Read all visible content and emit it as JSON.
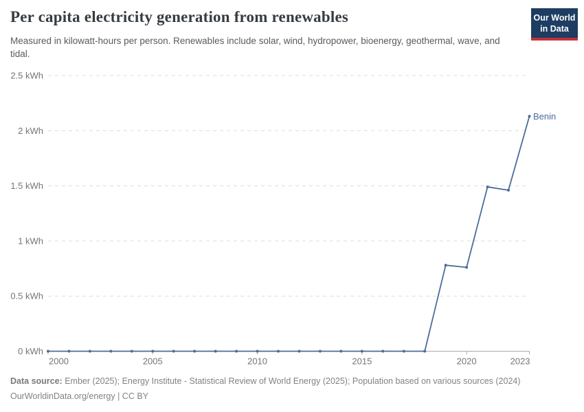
{
  "header": {
    "title": "Per capita electricity generation from renewables",
    "subtitle": "Measured in kilowatt-hours per person. Renewables include solar, wind, hydropower, bioenergy, geothermal, wave, and tidal.",
    "logo": {
      "line1": "Our World",
      "line2": "in Data",
      "bg_color": "#1d3d63",
      "accent_color": "#c4313b"
    }
  },
  "chart_data": {
    "type": "line",
    "title": "Per capita electricity generation from renewables",
    "xlabel": "",
    "ylabel": "kWh per person",
    "xlim": [
      2000,
      2023
    ],
    "ylim": [
      0,
      2.5
    ],
    "grid": "horizontal-dashed",
    "legend_position": "end-of-line-label",
    "x_ticks": [
      2000,
      2005,
      2010,
      2015,
      2020,
      2023
    ],
    "y_ticks": [
      {
        "value": 0,
        "label": "0 kWh"
      },
      {
        "value": 0.5,
        "label": "0.5 kWh"
      },
      {
        "value": 1,
        "label": "1 kWh"
      },
      {
        "value": 1.5,
        "label": "1.5 kWh"
      },
      {
        "value": 2,
        "label": "2 kWh"
      },
      {
        "value": 2.5,
        "label": "2.5 kWh"
      }
    ],
    "series": [
      {
        "name": "Benin",
        "color": "#4c6a9c",
        "x": [
          2000,
          2001,
          2002,
          2003,
          2004,
          2005,
          2006,
          2007,
          2008,
          2009,
          2010,
          2011,
          2012,
          2013,
          2014,
          2015,
          2016,
          2017,
          2018,
          2019,
          2020,
          2021,
          2022,
          2023
        ],
        "values": [
          0,
          0,
          0,
          0,
          0,
          0,
          0,
          0,
          0,
          0,
          0,
          0,
          0,
          0,
          0,
          0,
          0,
          0,
          0,
          0.78,
          0.76,
          1.49,
          1.46,
          2.13
        ]
      }
    ],
    "axis_color": "#a9a9a9",
    "gridline_color": "#dcdcdc",
    "tick_label_color": "#757575"
  },
  "footer": {
    "datasource_label": "Data source:",
    "datasource_text": "Ember (2025); Energy Institute - Statistical Review of World Energy (2025); Population based on various sources (2024)",
    "license_line": "OurWorldinData.org/energy | CC BY"
  }
}
